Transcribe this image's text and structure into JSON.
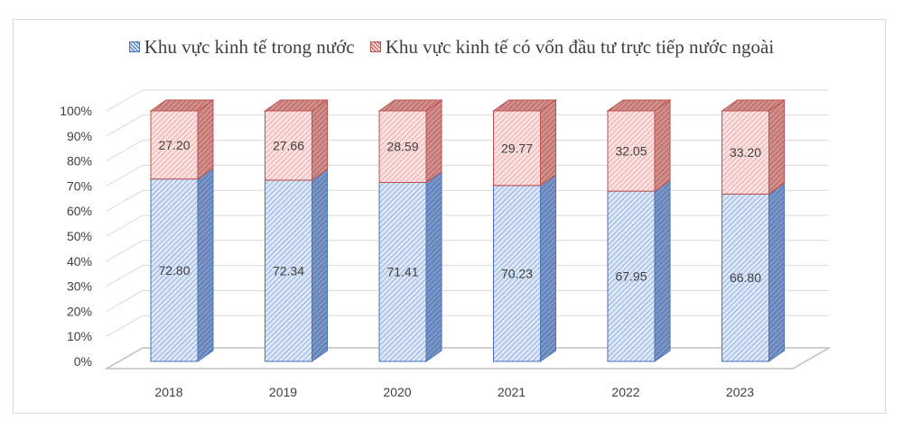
{
  "legend": [
    {
      "label": "Khu vực kinh tế trong nước",
      "color": "#4a72b8"
    },
    {
      "label": "Khu vực kinh tế có vốn đầu tư trực tiếp nước ngoài",
      "color": "#c0504d"
    }
  ],
  "chart_data": {
    "type": "bar",
    "stacked": true,
    "three_d": true,
    "title": "",
    "xlabel": "",
    "ylabel": "",
    "categories": [
      "2018",
      "2019",
      "2020",
      "2021",
      "2022",
      "2023"
    ],
    "series": [
      {
        "name": "Khu vực kinh tế trong nước",
        "values": [
          72.8,
          72.34,
          71.41,
          70.23,
          67.95,
          66.8
        ],
        "labels": [
          "72.80",
          "72.34",
          "71.41",
          "70.23",
          "67.95",
          "66.80"
        ],
        "color": "#4a72b8"
      },
      {
        "name": "Khu vực kinh tế có vốn đầu tư trực tiếp nước ngoài",
        "values": [
          27.2,
          27.66,
          28.59,
          29.77,
          32.05,
          33.2
        ],
        "labels": [
          "27.20",
          "27.66",
          "28.59",
          "29.77",
          "32.05",
          "33.20"
        ],
        "color": "#c0504d"
      }
    ],
    "ylim": [
      0,
      100
    ],
    "yticks": [
      "0%",
      "10%",
      "20%",
      "30%",
      "40%",
      "50%",
      "60%",
      "70%",
      "80%",
      "90%",
      "100%"
    ],
    "grid": true,
    "legend_position": "top"
  }
}
